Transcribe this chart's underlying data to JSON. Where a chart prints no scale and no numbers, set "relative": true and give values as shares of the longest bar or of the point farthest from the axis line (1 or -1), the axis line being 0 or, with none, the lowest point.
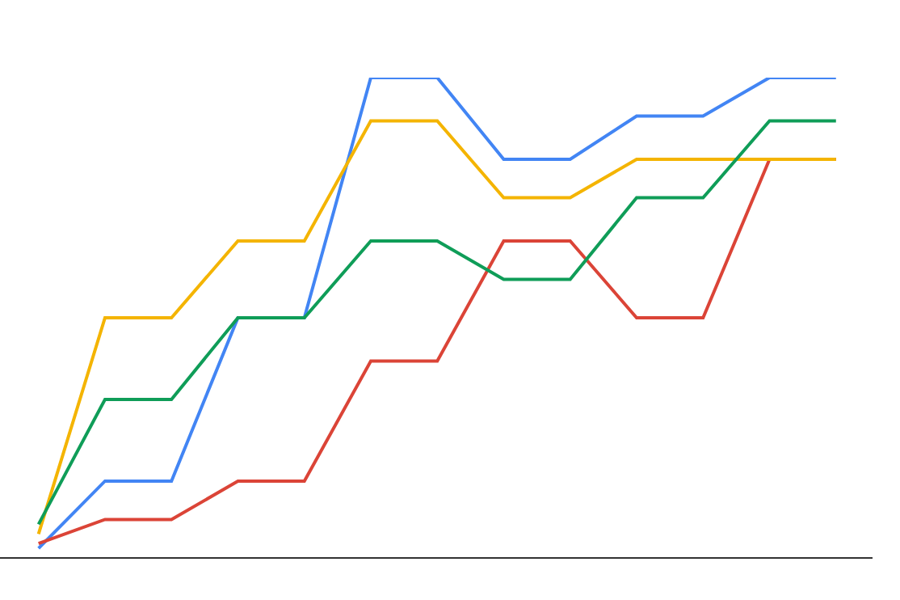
{
  "chart_data": {
    "type": "line",
    "relative": true,
    "categories": [
      null,
      null,
      null,
      null,
      null,
      null,
      null,
      null,
      null,
      null,
      null,
      null,
      null
    ],
    "series": [
      {
        "color": "#4285f4",
        "values": [
          0.02,
          0.16,
          0.16,
          0.5,
          0.5,
          1,
          1,
          0.83,
          0.83,
          0.92,
          0.92,
          1,
          1
        ]
      },
      {
        "color": "#db4437",
        "values": [
          0.03,
          0.08,
          0.08,
          0.16,
          0.16,
          0.41,
          0.41,
          0.66,
          0.66,
          0.5,
          0.5,
          0.83,
          0.83
        ]
      },
      {
        "color": "#f4b400",
        "values": [
          0.05,
          0.5,
          0.5,
          0.66,
          0.66,
          0.91,
          0.91,
          0.75,
          0.75,
          0.83,
          0.83,
          0.83,
          0.83
        ]
      },
      {
        "color": "#0f9d58",
        "values": [
          0.07,
          0.33,
          0.33,
          0.5,
          0.5,
          0.66,
          0.66,
          0.58,
          0.58,
          0.75,
          0.75,
          0.91,
          0.91
        ]
      }
    ]
  }
}
